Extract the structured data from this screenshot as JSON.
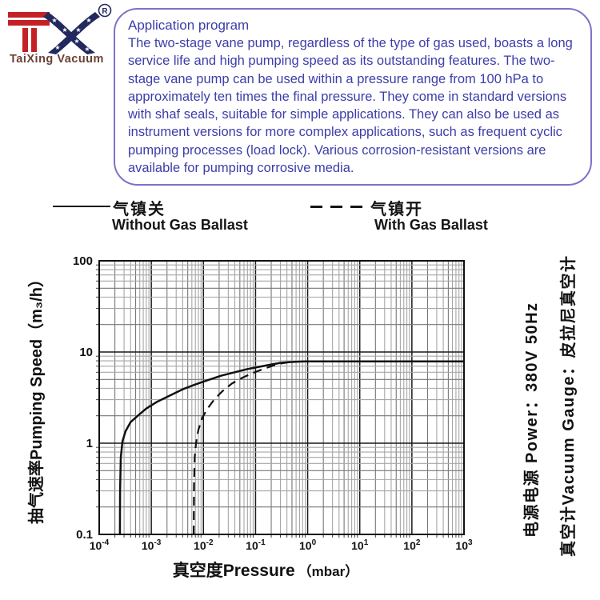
{
  "logo": {
    "brand": "TaiXing Vacuum",
    "registered_mark": "R",
    "colors": {
      "red": "#c42127",
      "navy": "#22295f",
      "brand_text": "#6b4136"
    }
  },
  "info_box": {
    "title": "Application program",
    "body": "The two-stage vane pump, regardless of the type of gas used, boasts a long service life and high pumping speed as its outstanding features. The two-stage vane pump can be used within a pressure range from 100 hPa to approximately ten times the final pressure. They come in standard versions with shaf seals, suitable for simple applications. They can also be used as instrument versions for more complex applications, such as frequent cyclic pumping processes (load lock). Various corrosion-resistant versions are available for pumping corrosive media.",
    "border_color": "#7f71c9",
    "text_color": "#3d3daa"
  },
  "legend": [
    {
      "line_style": "solid",
      "label_cn": "气镇关",
      "label_en": "Without Gas Ballast"
    },
    {
      "line_style": "dashed",
      "label_cn": "气镇开",
      "label_en": "With Gas Ballast"
    }
  ],
  "side_info": {
    "power_line": "电源电源  Power：380V 50Hz",
    "gauge_line": "真空计Vacuum Gauge：皮拉尼真空计"
  },
  "chart_data": {
    "type": "line",
    "x_scale": "log",
    "y_scale": "log",
    "xlim": [
      0.0001,
      1000
    ],
    "ylim": [
      0.1,
      100
    ],
    "x_tick_exponents": [
      -4,
      -3,
      -2,
      -1,
      0,
      1,
      2,
      3
    ],
    "y_ticks": [
      {
        "label": "100",
        "value": 100
      },
      {
        "label": "10",
        "value": 10
      },
      {
        "label": "1",
        "value": 1
      },
      {
        "label": "0.1",
        "value": 0.1
      }
    ],
    "xlabel_main": "真空度Pressure",
    "xlabel_unit": "（mbar）",
    "ylabel": "抽气速率Pumping Speed（m₃/h）",
    "grid": true,
    "legend_position": "above",
    "series": [
      {
        "name": "Without Gas Ballast",
        "style": "solid",
        "points": [
          [
            0.00025,
            0.1
          ],
          [
            0.000252,
            0.3
          ],
          [
            0.00026,
            0.7
          ],
          [
            0.00028,
            1.05
          ],
          [
            0.00032,
            1.35
          ],
          [
            0.0004,
            1.7
          ],
          [
            0.00055,
            2.0
          ],
          [
            0.0008,
            2.4
          ],
          [
            0.0013,
            2.85
          ],
          [
            0.0022,
            3.3
          ],
          [
            0.004,
            3.9
          ],
          [
            0.007,
            4.4
          ],
          [
            0.012,
            4.9
          ],
          [
            0.022,
            5.5
          ],
          [
            0.04,
            6.0
          ],
          [
            0.07,
            6.5
          ],
          [
            0.12,
            6.9
          ],
          [
            0.2,
            7.3
          ],
          [
            0.3,
            7.6
          ],
          [
            0.45,
            7.75
          ],
          [
            0.7,
            7.85
          ],
          [
            1,
            7.9
          ],
          [
            3,
            7.9
          ],
          [
            10,
            7.9
          ],
          [
            30,
            7.9
          ],
          [
            100,
            7.9
          ],
          [
            300,
            7.9
          ],
          [
            1000,
            7.9
          ]
        ]
      },
      {
        "name": "With Gas Ballast",
        "style": "dashed",
        "points": [
          [
            0.0065,
            0.1
          ],
          [
            0.0066,
            0.35
          ],
          [
            0.0068,
            0.7
          ],
          [
            0.0072,
            1.0
          ],
          [
            0.008,
            1.4
          ],
          [
            0.0095,
            1.9
          ],
          [
            0.012,
            2.4
          ],
          [
            0.016,
            3.0
          ],
          [
            0.023,
            3.7
          ],
          [
            0.035,
            4.5
          ],
          [
            0.055,
            5.2
          ],
          [
            0.09,
            5.9
          ],
          [
            0.14,
            6.5
          ],
          [
            0.22,
            7.1
          ],
          [
            0.32,
            7.5
          ],
          [
            0.45,
            7.75
          ],
          [
            0.6,
            7.85
          ]
        ]
      }
    ]
  }
}
